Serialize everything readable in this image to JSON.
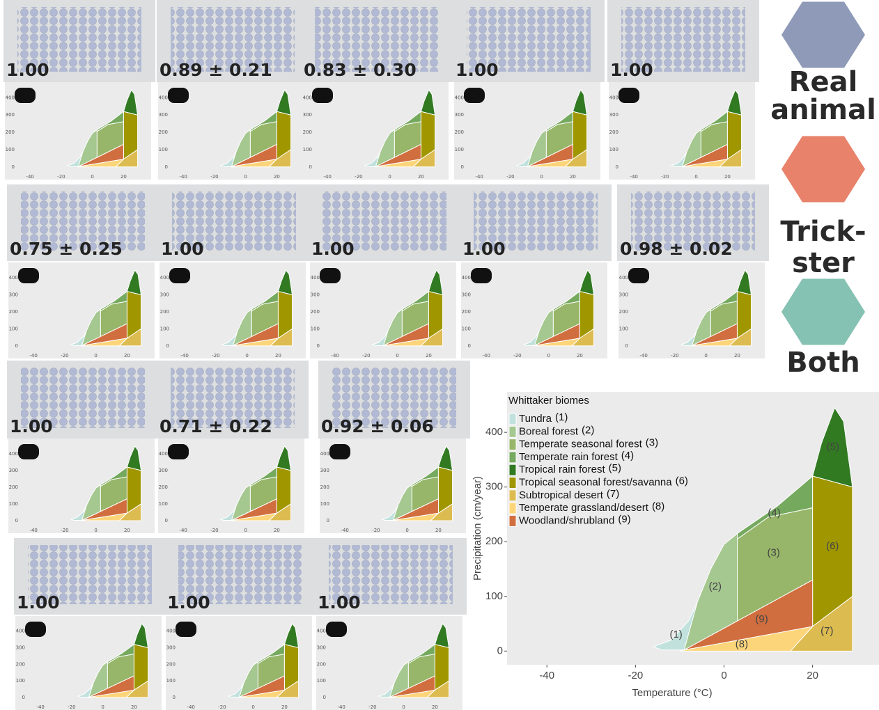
{
  "panels": [
    {
      "score": "1.00"
    },
    {
      "score": "0.89 ± 0.21"
    },
    {
      "score": "0.83 ± 0.30"
    },
    {
      "score": "1.00"
    },
    {
      "score": "1.00"
    },
    {
      "score": "0.75 ± 0.25"
    },
    {
      "score": "1.00"
    },
    {
      "score": "1.00"
    },
    {
      "score": "1.00"
    },
    {
      "score": "0.98 ± 0.02"
    },
    {
      "score": "1.00"
    },
    {
      "score": "0.71 ± 0.22"
    },
    {
      "score": "0.92 ± 0.06"
    },
    {
      "score": "1.00"
    },
    {
      "score": "1.00"
    },
    {
      "score": "1.00"
    }
  ],
  "legend": [
    {
      "lines": [
        "Real",
        "animal"
      ],
      "color": "#8e9ab8"
    },
    {
      "lines": [
        "Trick-",
        "ster"
      ],
      "color": "#e8826a"
    },
    {
      "lines": [
        "Both"
      ],
      "color": "#85c2b3"
    }
  ],
  "chart_data": {
    "type": "area",
    "legend_title": "Whittaker biomes",
    "xlabel": "Temperature (°C)",
    "ylabel": "Precipitation (cm/year)",
    "xlim": [
      -49,
      35
    ],
    "ylim": [
      -25,
      474
    ],
    "xticks": [
      -40,
      -20,
      0,
      20
    ],
    "yticks": [
      0,
      100,
      200,
      300,
      400
    ],
    "series": [
      {
        "name": "Tundra",
        "label": "(1)",
        "color": "#c1e1dd",
        "x": [
          -16,
          -12,
          -8,
          -6,
          -9,
          -14
        ],
        "values": [
          8,
          20,
          55,
          90,
          2,
          2
        ]
      },
      {
        "name": "Boreal forest",
        "label": "(2)",
        "color": "#a5c790",
        "x": [
          -9,
          -6,
          -3,
          0,
          3,
          3
        ],
        "values": [
          2,
          90,
          150,
          195,
          215,
          55
        ]
      },
      {
        "name": "Temperate seasonal forest",
        "label": "(3)",
        "color": "#97b669",
        "x": [
          3,
          3,
          10,
          20,
          20
        ],
        "values": [
          55,
          205,
          245,
          262,
          130
        ]
      },
      {
        "name": "Temperate rain forest",
        "label": "(4)",
        "color": "#75a95e",
        "x": [
          3,
          3,
          12,
          20,
          20,
          10
        ],
        "values": [
          205,
          215,
          265,
          320,
          262,
          245
        ]
      },
      {
        "name": "Tropical rain forest",
        "label": "(5)",
        "color": "#317a22",
        "x": [
          20,
          22,
          25,
          27,
          29
        ],
        "values": [
          320,
          380,
          445,
          420,
          300
        ]
      },
      {
        "name": "Tropical seasonal forest/savanna",
        "label": "(6)",
        "color": "#a09700",
        "x": [
          20,
          20,
          29,
          29
        ],
        "values": [
          45,
          320,
          300,
          100
        ]
      },
      {
        "name": "Subtropical desert",
        "label": "(7)",
        "color": "#dcbb50",
        "x": [
          15,
          20,
          29,
          29
        ],
        "values": [
          0,
          45,
          100,
          0
        ]
      },
      {
        "name": "Temperate grassland/desert",
        "label": "(8)",
        "color": "#fcd57a",
        "x": [
          -10,
          -9,
          20,
          15
        ],
        "values": [
          0,
          2,
          45,
          0
        ]
      },
      {
        "name": "Woodland/shrubland",
        "label": "(9)",
        "color": "#d16e3f",
        "x": [
          -9,
          3,
          20,
          20
        ],
        "values": [
          2,
          55,
          130,
          45
        ]
      }
    ]
  }
}
